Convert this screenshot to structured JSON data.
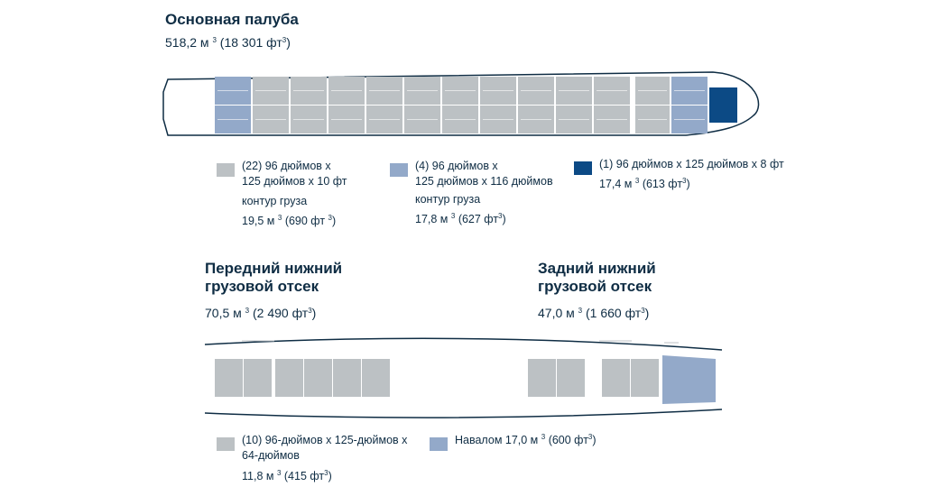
{
  "colors": {
    "standard_pallet": "#bcc1c4",
    "half_pallet": "#93a9c9",
    "main_door_unit": "#0c4a85",
    "bulk": "#93a9c9",
    "outline": "#0f2d44",
    "text": "#0f2d44"
  },
  "main_deck": {
    "title": "Основная палуба",
    "volume_m3": "518,2 м",
    "volume_ft3": " (18 301 фт",
    "volume_close": ")",
    "sup": "3",
    "legend": [
      {
        "count": "(22) 96 дюймов x",
        "size": "125 дюймов x 10 фт",
        "contour": "контур груза",
        "volume_m3": "19,5 м",
        "volume_ft3": " (690 фт",
        "close": ")",
        "color_key": "standard_pallet"
      },
      {
        "count": "(4) 96 дюймов x",
        "size": "125 дюймов x 116 дюймов",
        "contour": "контур груза",
        "volume_m3": "17,8 м",
        "volume_ft3": " (627 фт",
        "close": ")",
        "color_key": "half_pallet"
      },
      {
        "count": "(1) 96 дюймов x 125 дюймов x 8 фт",
        "volume_m3": "17,4 м",
        "volume_ft3": " (613 фт",
        "close": ")",
        "color_key": "main_door_unit"
      }
    ]
  },
  "forward_lower": {
    "title_line1": "Передний нижний",
    "title_line2": "грузовой отсек",
    "volume_m3": "70,5 м",
    "volume_ft3": " (2 490 фт",
    "close": ")"
  },
  "aft_lower": {
    "title_line1": "Задний нижний",
    "title_line2": "грузовой отсек",
    "volume_m3": "47,0 м",
    "volume_ft3": " (1 660 фт",
    "close": ")"
  },
  "lower_legend": [
    {
      "line1": "(10) 96-дюймов x 125-дюймов x",
      "line2": "64-дюймов",
      "volume_m3": "11,8 м",
      "volume_ft3": " (415 фт",
      "close": ")",
      "color_key": "standard_pallet"
    },
    {
      "line1": "Навалом 17,0 м",
      "volume_ft3": " (600 фт",
      "close": ")",
      "color_key": "bulk"
    }
  ]
}
